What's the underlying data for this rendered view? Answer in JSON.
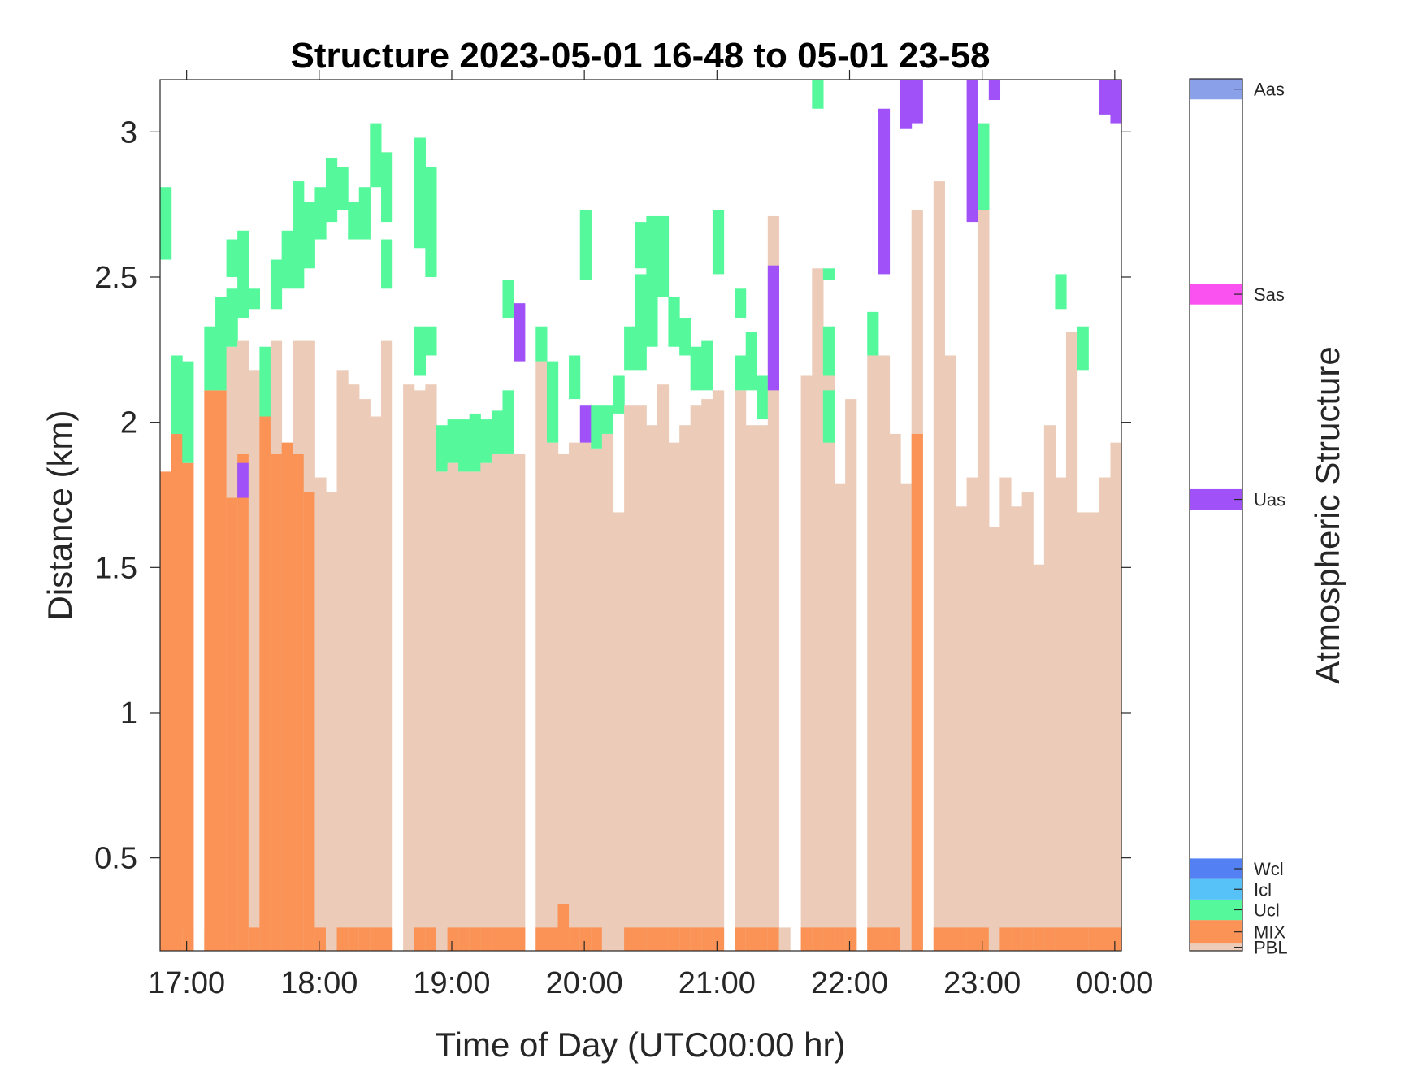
{
  "chart_data": {
    "type": "heatmap",
    "title": "Structure 2023-05-01 16-48 to 05-01 23-58",
    "xlabel": "Time of Day (UTC00:00 hr)",
    "ylabel": "Distance (km)",
    "colorbar_label": "Atmospheric Structure",
    "xlim": [
      16.8,
      24.05
    ],
    "ylim": [
      0.18,
      3.18
    ],
    "x_ticks": [
      17,
      18,
      19,
      20,
      21,
      22,
      23,
      24
    ],
    "x_tick_labels": [
      "17:00",
      "18:00",
      "19:00",
      "20:00",
      "21:00",
      "22:00",
      "23:00",
      "00:00"
    ],
    "y_ticks": [
      0.5,
      1,
      1.5,
      2,
      2.5,
      3
    ],
    "y_tick_labels": [
      "0.5",
      "1",
      "1.5",
      "2",
      "2.5",
      "3"
    ],
    "categories": [
      {
        "code": "PBL",
        "label": "PBL",
        "color": "#ecccb8",
        "band": [
          0.0,
          0.35
        ]
      },
      {
        "code": "MIX",
        "label": "MIX",
        "color": "#fa9355",
        "band": [
          0.35,
          1.5
        ]
      },
      {
        "code": "Ucl",
        "label": "Ucl",
        "color": "#56f89c",
        "band": [
          1.5,
          2.5
        ]
      },
      {
        "code": "Icl",
        "label": "Icl",
        "color": "#56c2f8",
        "band": [
          2.5,
          3.5
        ]
      },
      {
        "code": "Wcl",
        "label": "Wcl",
        "color": "#5381f4",
        "band": [
          3.5,
          4.5
        ]
      },
      {
        "code": "Uas",
        "label": "Uas",
        "color": "#a052f8",
        "band": [
          21.5,
          22.5
        ]
      },
      {
        "code": "Sas",
        "label": "Sas",
        "color": "#fa52f0",
        "band": [
          31.5,
          32.5
        ]
      },
      {
        "code": "Aas",
        "label": "Aas",
        "color": "#8aa0e8",
        "band": [
          41.5,
          42.5
        ]
      }
    ],
    "colorbar_range": [
      0,
      42.5
    ],
    "time_step_hr": 0.0833,
    "columns": [
      {
        "t": 16.8,
        "pbl": 0.25,
        "mix": 1.83,
        "ucl": [
          [
            2.56,
            2.81
          ]
        ]
      },
      {
        "t": 16.883,
        "pbl": 0.25,
        "mix": 1.96,
        "ucl": [
          [
            1.96,
            2.23
          ]
        ]
      },
      {
        "t": 16.967,
        "pbl": 0.25,
        "mix": 1.86,
        "ucl": [
          [
            1.86,
            2.21
          ]
        ]
      },
      {
        "t": 17.05
      },
      {
        "t": 17.133,
        "pbl": 0.25,
        "mix": 2.11,
        "ucl": [
          [
            2.11,
            2.33
          ]
        ]
      },
      {
        "t": 17.217,
        "pbl": 0.25,
        "mix": 2.11,
        "ucl": [
          [
            2.11,
            2.43
          ]
        ]
      },
      {
        "t": 17.3,
        "pbl": 2.26,
        "mix": 1.74,
        "ucl": [
          [
            2.26,
            2.46
          ],
          [
            2.5,
            2.63
          ]
        ]
      },
      {
        "t": 17.383,
        "pbl": 2.28,
        "mix": 1.89,
        "uas": [
          [
            1.74,
            1.86
          ]
        ],
        "ucl": [
          [
            2.36,
            2.66
          ]
        ]
      },
      {
        "t": 17.467,
        "pbl": 2.18,
        "mix": 0.26,
        "ucl": [
          [
            2.39,
            2.46
          ]
        ]
      },
      {
        "t": 17.55,
        "pbl": 2.02,
        "mix": 2.02,
        "ucl": [
          [
            2.02,
            2.26
          ]
        ]
      },
      {
        "t": 17.633,
        "pbl": 2.28,
        "mix": 1.89,
        "ucl": [
          [
            2.39,
            2.56
          ]
        ]
      },
      {
        "t": 17.717,
        "pbl": 1.93,
        "mix": 1.93,
        "ucl": [
          [
            2.46,
            2.66
          ]
        ]
      },
      {
        "t": 17.8,
        "pbl": 2.28,
        "mix": 1.89,
        "ucl": [
          [
            2.46,
            2.83
          ]
        ]
      },
      {
        "t": 17.883,
        "pbl": 2.28,
        "mix": 1.76,
        "ucl": [
          [
            2.53,
            2.76
          ]
        ]
      },
      {
        "t": 17.967,
        "pbl": 1.81,
        "mix": 0.26,
        "ucl": [
          [
            2.63,
            2.81
          ]
        ]
      },
      {
        "t": 18.05,
        "pbl": 1.76,
        "mix": 0.18,
        "ucl": [
          [
            2.69,
            2.91
          ]
        ]
      },
      {
        "t": 18.133,
        "pbl": 2.18,
        "mix": 0.26,
        "ucl": [
          [
            2.73,
            2.88
          ]
        ]
      },
      {
        "t": 18.217,
        "pbl": 2.13,
        "mix": 0.26,
        "ucl": [
          [
            2.63,
            2.76
          ]
        ]
      },
      {
        "t": 18.3,
        "pbl": 2.08,
        "mix": 0.26,
        "ucl": [
          [
            2.63,
            2.81
          ]
        ]
      },
      {
        "t": 18.383,
        "pbl": 2.02,
        "mix": 0.26,
        "ucl": [
          [
            2.81,
            3.03
          ]
        ]
      },
      {
        "t": 18.467,
        "pbl": 2.28,
        "mix": 0.26,
        "ucl": [
          [
            2.69,
            2.93
          ],
          [
            2.46,
            2.63
          ]
        ]
      },
      {
        "t": 18.55
      },
      {
        "t": 18.633,
        "pbl": 2.13,
        "mix": 0.18
      },
      {
        "t": 18.717,
        "pbl": 2.11,
        "mix": 0.26,
        "ucl": [
          [
            2.16,
            2.33
          ],
          [
            2.6,
            2.98
          ]
        ]
      },
      {
        "t": 18.8,
        "pbl": 2.13,
        "mix": 0.26,
        "ucl": [
          [
            2.23,
            2.33
          ],
          [
            2.5,
            2.88
          ]
        ]
      },
      {
        "t": 18.883,
        "pbl": 1.83,
        "mix": 0.18,
        "ucl": [
          [
            1.83,
            1.99
          ]
        ]
      },
      {
        "t": 18.967,
        "pbl": 1.86,
        "mix": 0.26,
        "ucl": [
          [
            1.86,
            2.01
          ]
        ]
      },
      {
        "t": 19.05,
        "pbl": 1.83,
        "mix": 0.26,
        "ucl": [
          [
            1.83,
            2.01
          ]
        ]
      },
      {
        "t": 19.133,
        "pbl": 1.83,
        "mix": 0.26,
        "ucl": [
          [
            1.83,
            2.03
          ]
        ]
      },
      {
        "t": 19.217,
        "pbl": 1.86,
        "mix": 0.26,
        "ucl": [
          [
            1.86,
            2.01
          ]
        ]
      },
      {
        "t": 19.3,
        "pbl": 1.89,
        "mix": 0.26,
        "ucl": [
          [
            1.89,
            2.04
          ]
        ]
      },
      {
        "t": 19.383,
        "pbl": 1.89,
        "mix": 0.26,
        "ucl": [
          [
            1.89,
            2.11
          ],
          [
            2.36,
            2.49
          ]
        ]
      },
      {
        "t": 19.467,
        "pbl": 1.89,
        "mix": 0.26,
        "uas": [
          [
            2.21,
            2.41
          ]
        ]
      },
      {
        "t": 19.55
      },
      {
        "t": 19.633,
        "pbl": 2.21,
        "mix": 0.26,
        "ucl": [
          [
            2.21,
            2.33
          ]
        ]
      },
      {
        "t": 19.717,
        "pbl": 1.93,
        "mix": 0.26,
        "ucl": [
          [
            1.93,
            2.21
          ]
        ]
      },
      {
        "t": 19.8,
        "pbl": 1.89,
        "mix": 0.34
      },
      {
        "t": 19.883,
        "pbl": 1.93,
        "mix": 0.26,
        "ucl": [
          [
            2.08,
            2.23
          ]
        ]
      },
      {
        "t": 19.967,
        "pbl": 1.93,
        "mix": 0.26,
        "uas": [
          [
            1.93,
            2.06
          ]
        ],
        "ucl": [
          [
            2.49,
            2.73
          ]
        ]
      },
      {
        "t": 20.05,
        "pbl": 1.91,
        "mix": 0.26,
        "ucl": [
          [
            1.91,
            2.06
          ]
        ]
      },
      {
        "t": 20.133,
        "pbl": 1.96,
        "mix": 0.18,
        "ucl": [
          [
            1.96,
            2.06
          ]
        ]
      },
      {
        "t": 20.217,
        "pbl": 1.69,
        "mix": 0.18,
        "ucl": [
          [
            2.03,
            2.16
          ]
        ]
      },
      {
        "t": 20.3,
        "pbl": 2.06,
        "mix": 0.26,
        "ucl": [
          [
            2.18,
            2.33
          ]
        ]
      },
      {
        "t": 20.383,
        "pbl": 2.06,
        "mix": 0.26,
        "ucl": [
          [
            2.18,
            2.51
          ],
          [
            2.53,
            2.69
          ]
        ]
      },
      {
        "t": 20.467,
        "pbl": 1.99,
        "mix": 0.26,
        "ucl": [
          [
            2.26,
            2.71
          ]
        ]
      },
      {
        "t": 20.55,
        "pbl": 2.13,
        "mix": 0.26,
        "ucl": [
          [
            2.43,
            2.71
          ]
        ]
      },
      {
        "t": 20.633,
        "pbl": 1.93,
        "mix": 0.26,
        "ucl": [
          [
            2.26,
            2.43
          ]
        ]
      },
      {
        "t": 20.717,
        "pbl": 1.99,
        "mix": 0.26,
        "ucl": [
          [
            2.23,
            2.36
          ]
        ]
      },
      {
        "t": 20.8,
        "pbl": 2.06,
        "mix": 0.26,
        "ucl": [
          [
            2.11,
            2.26
          ]
        ]
      },
      {
        "t": 20.883,
        "pbl": 2.08,
        "mix": 0.26,
        "ucl": [
          [
            2.11,
            2.28
          ]
        ]
      },
      {
        "t": 20.967,
        "pbl": 2.11,
        "mix": 0.26,
        "ucl": [
          [
            2.51,
            2.73
          ]
        ]
      },
      {
        "t": 21.05
      },
      {
        "t": 21.133,
        "pbl": 2.11,
        "mix": 0.26,
        "ucl": [
          [
            2.11,
            2.23
          ],
          [
            2.36,
            2.46
          ]
        ]
      },
      {
        "t": 21.217,
        "pbl": 1.99,
        "mix": 0.26,
        "ucl": [
          [
            2.11,
            2.31
          ]
        ]
      },
      {
        "t": 21.3,
        "pbl": 1.99,
        "mix": 0.26,
        "ucl": [
          [
            2.01,
            2.16
          ]
        ]
      },
      {
        "t": 21.383,
        "pbl": 2.71,
        "mix": 0.26,
        "uas": [
          [
            2.11,
            2.31
          ],
          [
            2.31,
            2.54
          ]
        ]
      },
      {
        "t": 21.467,
        "pbl": 0.26,
        "mix": 0.18
      },
      {
        "t": 21.55
      },
      {
        "t": 21.633,
        "pbl": 2.16,
        "mix": 0.26
      },
      {
        "t": 21.717,
        "pbl": 2.53,
        "mix": 0.26,
        "ucl": [
          [
            3.08,
            3.18
          ]
        ]
      },
      {
        "t": 21.8,
        "pbl": 2.23,
        "mix": 0.26,
        "ucl": [
          [
            1.93,
            2.11
          ],
          [
            2.49,
            2.53
          ],
          [
            2.16,
            2.33
          ]
        ]
      },
      {
        "t": 21.883,
        "pbl": 1.79,
        "mix": 0.26
      },
      {
        "t": 21.967,
        "pbl": 2.08,
        "mix": 0.26
      },
      {
        "t": 22.05
      },
      {
        "t": 22.133,
        "pbl": 2.23,
        "mix": 0.26,
        "ucl": [
          [
            2.23,
            2.38
          ]
        ]
      },
      {
        "t": 22.217,
        "pbl": 2.23,
        "mix": 0.26,
        "uas": [
          [
            2.51,
            3.08
          ]
        ]
      },
      {
        "t": 22.3,
        "pbl": 1.96,
        "mix": 0.26
      },
      {
        "t": 22.383,
        "pbl": 1.79,
        "mix": 0.18,
        "uas": [
          [
            3.01,
            3.18
          ]
        ]
      },
      {
        "t": 22.467,
        "pbl": 2.73,
        "mix": 1.96,
        "uas": [
          [
            3.03,
            3.18
          ]
        ]
      },
      {
        "t": 22.55
      },
      {
        "t": 22.633,
        "pbl": 2.83,
        "mix": 0.26
      },
      {
        "t": 22.717,
        "pbl": 2.23,
        "mix": 0.26
      },
      {
        "t": 22.8,
        "pbl": 1.71,
        "mix": 0.26
      },
      {
        "t": 22.883,
        "pbl": 1.81,
        "mix": 0.26,
        "uas": [
          [
            2.69,
            3.18
          ]
        ]
      },
      {
        "t": 22.967,
        "pbl": 2.73,
        "mix": 0.26,
        "ucl": [
          [
            2.73,
            3.03
          ]
        ]
      },
      {
        "t": 23.05,
        "pbl": 1.64,
        "mix": 0.18,
        "uas": [
          [
            3.11,
            3.18
          ]
        ]
      },
      {
        "t": 23.133,
        "pbl": 1.81,
        "mix": 0.26
      },
      {
        "t": 23.217,
        "pbl": 1.71,
        "mix": 0.26
      },
      {
        "t": 23.3,
        "pbl": 1.76,
        "mix": 0.26
      },
      {
        "t": 23.383,
        "pbl": 1.51,
        "mix": 0.26
      },
      {
        "t": 23.467,
        "pbl": 1.99,
        "mix": 0.26
      },
      {
        "t": 23.55,
        "pbl": 1.81,
        "mix": 0.26,
        "ucl": [
          [
            2.39,
            2.51
          ]
        ]
      },
      {
        "t": 23.633,
        "pbl": 2.31,
        "mix": 0.26
      },
      {
        "t": 23.717,
        "pbl": 1.69,
        "mix": 0.26,
        "ucl": [
          [
            2.18,
            2.33
          ]
        ]
      },
      {
        "t": 23.8,
        "pbl": 1.69,
        "mix": 0.26
      },
      {
        "t": 23.883,
        "pbl": 1.81,
        "mix": 0.26,
        "uas": [
          [
            3.06,
            3.18
          ]
        ]
      },
      {
        "t": 23.967,
        "pbl": 1.93,
        "mix": 0.26,
        "uas": [
          [
            3.03,
            3.18
          ]
        ]
      }
    ]
  }
}
